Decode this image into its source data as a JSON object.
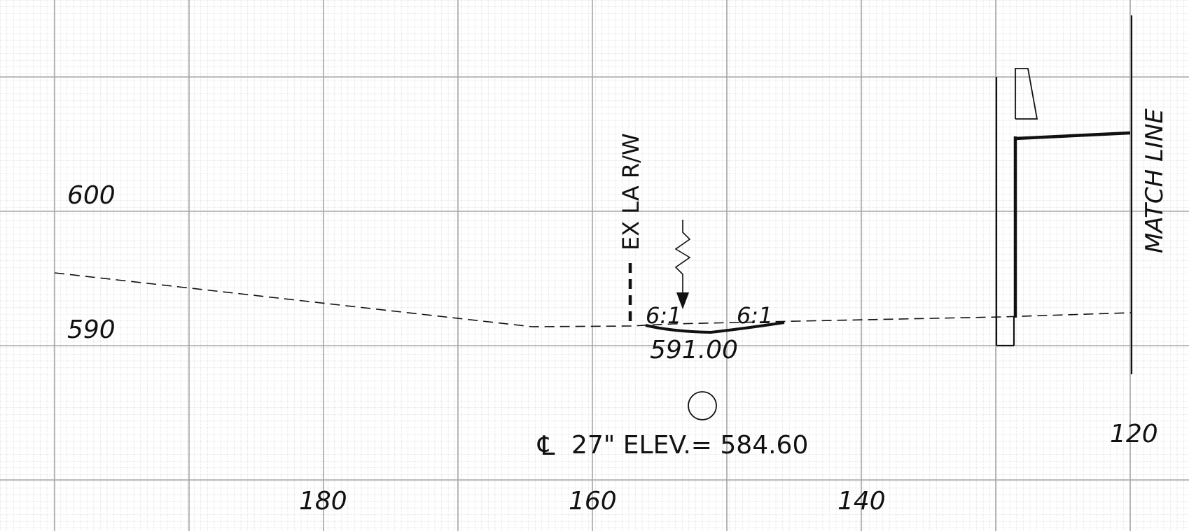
{
  "labels": {
    "elev_600": "600",
    "elev_590": "590",
    "elev_120": "120",
    "station_180": "180",
    "station_160": "160",
    "station_140": "140",
    "right_of_way": "EX LA R/W",
    "match_line": "MATCH LINE",
    "slope_left": "6:1",
    "slope_right": "6:1",
    "ditch_elevation": "591.00",
    "pipe_note": "27\" ELEV.= 584.60",
    "centerline_symbol": "℄"
  },
  "colors": {
    "grid_minor": "#c9c9c9",
    "grid_major": "#9a9a9a",
    "ink": "#111111"
  }
}
